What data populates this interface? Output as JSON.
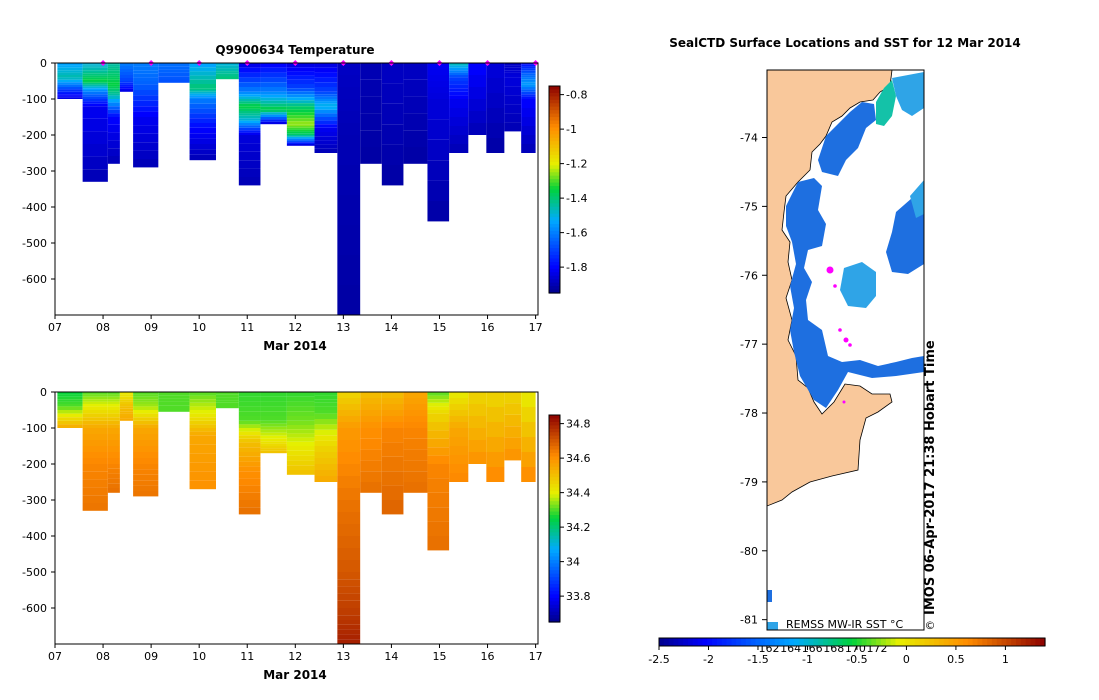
{
  "chart_data": [
    {
      "id": "temperature",
      "type": "heatmap",
      "title": "Q9900634  Temperature",
      "xlabel": "Mar 2014",
      "ylabel": "",
      "xlim": [
        7,
        17.05
      ],
      "ylim": [
        -700,
        0
      ],
      "x_tick_labels": [
        "07",
        "08",
        "09",
        "10",
        "11",
        "12",
        "13",
        "14",
        "15",
        "16",
        "17"
      ],
      "y_ticks": [
        0,
        -100,
        -200,
        -300,
        -400,
        -500,
        -600
      ],
      "colorbar": {
        "ticks": [
          -0.8,
          -1,
          -1.2,
          -1.4,
          -1.6,
          -1.8
        ],
        "range": [
          -1.95,
          -0.75
        ]
      },
      "surface_marker_days": [
        8,
        9,
        10,
        11,
        12,
        13,
        14,
        15,
        16,
        17
      ],
      "profiles": [
        {
          "day": 7.2,
          "depth": 100,
          "surf": -1.55,
          "layers": [
            [
              40,
              -1.45
            ],
            [
              80,
              -1.75
            ],
            [
              100,
              -1.85
            ]
          ]
        },
        {
          "day": 7.95,
          "depth": 330,
          "surf": -1.5,
          "layers": [
            [
              20,
              -1.45
            ],
            [
              50,
              -1.35
            ],
            [
              80,
              -1.6
            ],
            [
              120,
              -1.82
            ],
            [
              330,
              -1.9
            ]
          ]
        },
        {
          "day": 8.25,
          "depth": 280,
          "surf": -1.45,
          "layers": [
            [
              30,
              -1.4
            ],
            [
              60,
              -1.35
            ],
            [
              90,
              -1.45
            ],
            [
              150,
              -1.8
            ],
            [
              280,
              -1.9
            ]
          ]
        },
        {
          "day": 8.45,
          "depth": 80,
          "surf": -1.6,
          "layers": [
            [
              50,
              -1.7
            ],
            [
              80,
              -1.85
            ]
          ]
        },
        {
          "day": 8.8,
          "depth": 290,
          "surf": -1.6,
          "layers": [
            [
              60,
              -1.65
            ],
            [
              150,
              -1.82
            ],
            [
              290,
              -1.9
            ]
          ]
        },
        {
          "day": 9.5,
          "depth": 55,
          "surf": -1.62,
          "layers": [
            [
              55,
              -1.68
            ]
          ]
        },
        {
          "day": 10.1,
          "depth": 270,
          "surf": -1.55,
          "layers": [
            [
              70,
              -1.4
            ],
            [
              100,
              -1.6
            ],
            [
              180,
              -1.8
            ],
            [
              270,
              -1.9
            ]
          ]
        },
        {
          "day": 10.6,
          "depth": 45,
          "surf": -1.5,
          "layers": [
            [
              45,
              -1.4
            ]
          ]
        },
        {
          "day": 11.05,
          "depth": 340,
          "surf": -1.85,
          "layers": [
            [
              80,
              -1.6
            ],
            [
              120,
              -1.35
            ],
            [
              160,
              -1.5
            ],
            [
              200,
              -1.85
            ],
            [
              340,
              -1.9
            ]
          ]
        },
        {
          "day": 11.5,
          "depth": 170,
          "surf": -1.82,
          "layers": [
            [
              80,
              -1.6
            ],
            [
              130,
              -1.35
            ],
            [
              170,
              -1.88
            ]
          ]
        },
        {
          "day": 12.15,
          "depth": 230,
          "surf": -1.85,
          "layers": [
            [
              70,
              -1.7
            ],
            [
              120,
              -1.4
            ],
            [
              170,
              -1.25
            ],
            [
              200,
              -1.4
            ],
            [
              230,
              -1.88
            ]
          ]
        },
        {
          "day": 12.65,
          "depth": 250,
          "surf": -1.85,
          "layers": [
            [
              80,
              -1.7
            ],
            [
              120,
              -1.5
            ],
            [
              180,
              -1.82
            ],
            [
              250,
              -1.9
            ]
          ]
        },
        {
          "day": 13.1,
          "depth": 700,
          "surf": -1.88,
          "layers": [
            [
              200,
              -1.9
            ],
            [
              700,
              -1.92
            ]
          ]
        },
        {
          "day": 13.6,
          "depth": 280,
          "surf": -1.9,
          "layers": [
            [
              280,
              -1.92
            ]
          ]
        },
        {
          "day": 14.0,
          "depth": 340,
          "surf": -1.88,
          "layers": [
            [
              340,
              -1.92
            ]
          ]
        },
        {
          "day": 14.5,
          "depth": 280,
          "surf": -1.88,
          "layers": [
            [
              280,
              -1.92
            ]
          ]
        },
        {
          "day": 15.0,
          "depth": 440,
          "surf": -1.82,
          "layers": [
            [
              100,
              -1.85
            ],
            [
              440,
              -1.92
            ]
          ]
        },
        {
          "day": 15.4,
          "depth": 250,
          "surf": -1.45,
          "layers": [
            [
              40,
              -1.7
            ],
            [
              100,
              -1.82
            ],
            [
              250,
              -1.9
            ]
          ]
        },
        {
          "day": 15.8,
          "depth": 200,
          "surf": -1.8,
          "layers": [
            [
              200,
              -1.9
            ]
          ]
        },
        {
          "day": 16.15,
          "depth": 250,
          "surf": -1.85,
          "layers": [
            [
              250,
              -1.92
            ]
          ]
        },
        {
          "day": 16.55,
          "depth": 190,
          "surf": -1.88,
          "layers": [
            [
              40,
              -1.85
            ],
            [
              190,
              -1.9
            ]
          ]
        },
        {
          "day": 16.85,
          "depth": 250,
          "surf": -1.8,
          "layers": [
            [
              30,
              -1.65
            ],
            [
              60,
              -1.55
            ],
            [
              100,
              -1.8
            ],
            [
              250,
              -1.9
            ]
          ]
        }
      ]
    },
    {
      "id": "salinity",
      "type": "heatmap",
      "title": "",
      "xlabel": "Mar 2014",
      "ylabel": "",
      "xlim": [
        7,
        17.05
      ],
      "ylim": [
        -700,
        0
      ],
      "x_tick_labels": [
        "07",
        "08",
        "09",
        "10",
        "11",
        "12",
        "13",
        "14",
        "15",
        "16",
        "17"
      ],
      "y_ticks": [
        0,
        -100,
        -200,
        -300,
        -400,
        -500,
        -600
      ],
      "colorbar": {
        "ticks": [
          34.8,
          34.6,
          34.4,
          34.2,
          34,
          33.8
        ],
        "range": [
          33.65,
          34.85
        ]
      },
      "profiles": [
        {
          "day": 7.2,
          "depth": 100,
          "surf": 34.25,
          "layers": [
            [
              40,
              34.3
            ],
            [
              100,
              34.55
            ]
          ]
        },
        {
          "day": 7.95,
          "depth": 330,
          "surf": 34.3,
          "layers": [
            [
              40,
              34.4
            ],
            [
              100,
              34.55
            ],
            [
              200,
              34.62
            ],
            [
              330,
              34.65
            ]
          ]
        },
        {
          "day": 8.25,
          "depth": 280,
          "surf": 34.3,
          "layers": [
            [
              40,
              34.4
            ],
            [
              100,
              34.55
            ],
            [
              200,
              34.62
            ],
            [
              280,
              34.66
            ]
          ]
        },
        {
          "day": 8.45,
          "depth": 80,
          "surf": 34.4,
          "layers": [
            [
              40,
              34.5
            ],
            [
              80,
              34.55
            ]
          ]
        },
        {
          "day": 8.8,
          "depth": 290,
          "surf": 34.3,
          "layers": [
            [
              40,
              34.35
            ],
            [
              100,
              34.55
            ],
            [
              200,
              34.62
            ],
            [
              290,
              34.65
            ]
          ]
        },
        {
          "day": 9.5,
          "depth": 55,
          "surf": 34.3,
          "layers": [
            [
              55,
              34.3
            ]
          ]
        },
        {
          "day": 10.1,
          "depth": 270,
          "surf": 34.3,
          "layers": [
            [
              60,
              34.4
            ],
            [
              120,
              34.55
            ],
            [
              270,
              34.6
            ]
          ]
        },
        {
          "day": 10.6,
          "depth": 45,
          "surf": 34.3,
          "layers": [
            [
              45,
              34.3
            ]
          ]
        },
        {
          "day": 11.05,
          "depth": 340,
          "surf": 34.28,
          "layers": [
            [
              80,
              34.3
            ],
            [
              140,
              34.5
            ],
            [
              220,
              34.6
            ],
            [
              340,
              34.66
            ]
          ]
        },
        {
          "day": 11.5,
          "depth": 170,
          "surf": 34.28,
          "layers": [
            [
              80,
              34.3
            ],
            [
              130,
              34.4
            ],
            [
              170,
              34.5
            ]
          ]
        },
        {
          "day": 12.15,
          "depth": 230,
          "surf": 34.28,
          "layers": [
            [
              80,
              34.32
            ],
            [
              150,
              34.4
            ],
            [
              230,
              34.5
            ]
          ]
        },
        {
          "day": 12.65,
          "depth": 250,
          "surf": 34.28,
          "layers": [
            [
              60,
              34.3
            ],
            [
              150,
              34.45
            ],
            [
              250,
              34.55
            ]
          ]
        },
        {
          "day": 13.1,
          "depth": 700,
          "surf": 34.45,
          "layers": [
            [
              100,
              34.58
            ],
            [
              300,
              34.65
            ],
            [
              500,
              34.7
            ],
            [
              620,
              34.75
            ],
            [
              700,
              34.8
            ]
          ]
        },
        {
          "day": 13.6,
          "depth": 280,
          "surf": 34.5,
          "layers": [
            [
              100,
              34.6
            ],
            [
              280,
              34.66
            ]
          ]
        },
        {
          "day": 14.0,
          "depth": 340,
          "surf": 34.5,
          "layers": [
            [
              100,
              34.62
            ],
            [
              340,
              34.68
            ]
          ]
        },
        {
          "day": 14.5,
          "depth": 280,
          "surf": 34.55,
          "layers": [
            [
              100,
              34.62
            ],
            [
              280,
              34.66
            ]
          ]
        },
        {
          "day": 15.0,
          "depth": 440,
          "surf": 34.3,
          "layers": [
            [
              60,
              34.45
            ],
            [
              200,
              34.62
            ],
            [
              440,
              34.66
            ]
          ]
        },
        {
          "day": 15.4,
          "depth": 250,
          "surf": 34.4,
          "layers": [
            [
              100,
              34.55
            ],
            [
              250,
              34.62
            ]
          ]
        },
        {
          "day": 15.8,
          "depth": 200,
          "surf": 34.45,
          "layers": [
            [
              200,
              34.6
            ]
          ]
        },
        {
          "day": 16.15,
          "depth": 250,
          "surf": 34.45,
          "layers": [
            [
              250,
              34.62
            ]
          ]
        },
        {
          "day": 16.55,
          "depth": 190,
          "surf": 34.45,
          "layers": [
            [
              190,
              34.6
            ]
          ]
        },
        {
          "day": 16.85,
          "depth": 250,
          "surf": 34.4,
          "layers": [
            [
              250,
              34.62
            ]
          ]
        }
      ]
    },
    {
      "id": "sst_map",
      "type": "heatmap",
      "title": "SealCTD Surface Locations and SST for 12 Mar 2014",
      "lat_tick_labels": [
        "-74",
        "-75",
        "-76",
        "-77",
        "-78",
        "-79",
        "-80",
        "-81"
      ],
      "lat_ticks": [
        -74,
        -75,
        -76,
        -77,
        -78,
        -79,
        -80,
        -81
      ],
      "lat_range": [
        -73.02,
        -81.15
      ],
      "lon_tick_labels": [
        "162",
        "164",
        "166",
        "168",
        "170",
        "172"
      ],
      "colorbar": {
        "ticks": [
          "-2.5",
          "-2",
          "-1.5",
          "-1",
          "-0.5",
          "0",
          "0.5",
          "1"
        ],
        "range": [
          -2.5,
          1.4
        ],
        "label": "REMSS MW-IR SST °C"
      },
      "watermark": "IMOS 06-Apr-2017 21:38 Hobart Time",
      "copyright": "©",
      "legend_colors": {
        "land": "#f9c89b",
        "sst_cold": "#1e6fe0",
        "sst_mid": "#2fa4e7",
        "sst_warm": "#14c2a8",
        "track": "#ff00ff"
      }
    }
  ]
}
